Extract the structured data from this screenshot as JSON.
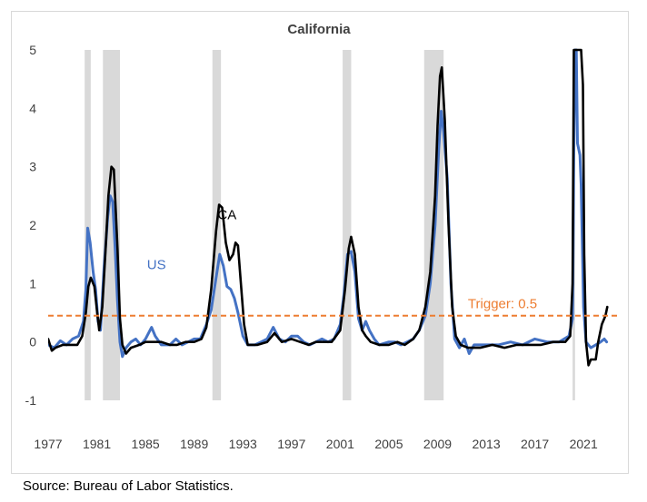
{
  "source": "Source: Bureau of Labor Statistics.",
  "chart_data": {
    "type": "line",
    "title": "California",
    "xlabel": "",
    "ylabel": "",
    "xlim": [
      1977,
      2023.3
    ],
    "ylim": [
      -1,
      5
    ],
    "x_ticks": [
      "1977",
      "1981",
      "1985",
      "1989",
      "1993",
      "1997",
      "2001",
      "2005",
      "2009",
      "2013",
      "2017",
      "2021"
    ],
    "y_ticks": [
      "5",
      "4",
      "3",
      "2",
      "1",
      "0",
      "-1"
    ],
    "grid": false,
    "recessions": [
      [
        1980.0,
        1980.5
      ],
      [
        1981.5,
        1982.9
      ],
      [
        1990.5,
        1991.2
      ],
      [
        2001.2,
        2001.9
      ],
      [
        2007.9,
        2009.5
      ],
      [
        2020.1,
        2020.3
      ]
    ],
    "trigger": {
      "value": 0.45,
      "label": "Trigger: 0.5",
      "color": "#ed7d31"
    },
    "colors": {
      "US": "#4472c4",
      "CA": "#000000",
      "recession": "#d9d9d9"
    },
    "series": [
      {
        "name": "US",
        "label": "US",
        "label_at": [
          1985.9,
          1.25
        ],
        "points": [
          [
            1977.0,
            -0.05
          ],
          [
            1977.5,
            -0.1
          ],
          [
            1978.0,
            0.02
          ],
          [
            1978.5,
            -0.05
          ],
          [
            1979.0,
            0.05
          ],
          [
            1979.5,
            0.1
          ],
          [
            1979.9,
            0.35
          ],
          [
            1980.1,
            0.9
          ],
          [
            1980.25,
            1.95
          ],
          [
            1980.45,
            1.7
          ],
          [
            1980.7,
            1.2
          ],
          [
            1980.9,
            0.9
          ],
          [
            1981.1,
            0.35
          ],
          [
            1981.3,
            0.2
          ],
          [
            1981.6,
            1.3
          ],
          [
            1981.9,
            2.15
          ],
          [
            1982.1,
            2.5
          ],
          [
            1982.3,
            2.4
          ],
          [
            1982.5,
            1.6
          ],
          [
            1982.7,
            0.7
          ],
          [
            1982.9,
            0.0
          ],
          [
            1983.1,
            -0.25
          ],
          [
            1983.4,
            -0.1
          ],
          [
            1983.8,
            0.0
          ],
          [
            1984.2,
            0.05
          ],
          [
            1984.6,
            -0.05
          ],
          [
            1985.0,
            0.05
          ],
          [
            1985.5,
            0.25
          ],
          [
            1985.8,
            0.1
          ],
          [
            1986.3,
            -0.05
          ],
          [
            1987.0,
            -0.05
          ],
          [
            1987.5,
            0.05
          ],
          [
            1988.0,
            -0.05
          ],
          [
            1988.5,
            0.0
          ],
          [
            1989.0,
            0.05
          ],
          [
            1989.5,
            0.05
          ],
          [
            1990.0,
            0.3
          ],
          [
            1990.4,
            0.55
          ],
          [
            1990.8,
            1.1
          ],
          [
            1991.1,
            1.5
          ],
          [
            1991.4,
            1.3
          ],
          [
            1991.7,
            0.95
          ],
          [
            1992.0,
            0.9
          ],
          [
            1992.3,
            0.75
          ],
          [
            1992.6,
            0.5
          ],
          [
            1993.0,
            0.1
          ],
          [
            1993.4,
            -0.05
          ],
          [
            1994.0,
            -0.05
          ],
          [
            1994.5,
            0.0
          ],
          [
            1995.0,
            0.05
          ],
          [
            1995.5,
            0.25
          ],
          [
            1996.0,
            0.05
          ],
          [
            1996.5,
            0.0
          ],
          [
            1997.0,
            0.1
          ],
          [
            1997.5,
            0.1
          ],
          [
            1998.0,
            0.0
          ],
          [
            1998.5,
            -0.05
          ],
          [
            1999.0,
            0.0
          ],
          [
            1999.5,
            0.05
          ],
          [
            2000.0,
            0.0
          ],
          [
            2000.5,
            0.05
          ],
          [
            2001.0,
            0.3
          ],
          [
            2001.3,
            0.8
          ],
          [
            2001.6,
            1.5
          ],
          [
            2001.9,
            1.55
          ],
          [
            2002.2,
            1.2
          ],
          [
            2002.5,
            0.4
          ],
          [
            2002.8,
            0.2
          ],
          [
            2003.1,
            0.35
          ],
          [
            2003.4,
            0.2
          ],
          [
            2003.8,
            0.05
          ],
          [
            2004.2,
            -0.05
          ],
          [
            2005.0,
            0.0
          ],
          [
            2005.5,
            0.0
          ],
          [
            2006.0,
            -0.05
          ],
          [
            2006.5,
            0.0
          ],
          [
            2007.0,
            0.05
          ],
          [
            2007.5,
            0.2
          ],
          [
            2008.0,
            0.45
          ],
          [
            2008.4,
            1.0
          ],
          [
            2008.8,
            2.0
          ],
          [
            2009.1,
            3.3
          ],
          [
            2009.3,
            3.95
          ],
          [
            2009.5,
            3.6
          ],
          [
            2009.8,
            2.8
          ],
          [
            2010.1,
            1.0
          ],
          [
            2010.4,
            0.05
          ],
          [
            2010.8,
            -0.1
          ],
          [
            2011.2,
            0.05
          ],
          [
            2011.6,
            -0.2
          ],
          [
            2012.0,
            -0.05
          ],
          [
            2013.0,
            -0.05
          ],
          [
            2014.0,
            -0.05
          ],
          [
            2015.0,
            0.0
          ],
          [
            2016.0,
            -0.05
          ],
          [
            2017.0,
            0.05
          ],
          [
            2018.0,
            0.0
          ],
          [
            2019.0,
            0.0
          ],
          [
            2019.8,
            0.1
          ],
          [
            2020.1,
            0.4
          ],
          [
            2020.2,
            3.3
          ],
          [
            2020.3,
            5.0
          ],
          [
            2020.4,
            5.0
          ],
          [
            2020.5,
            3.4
          ],
          [
            2020.7,
            3.2
          ],
          [
            2020.8,
            2.7
          ],
          [
            2021.0,
            0.6
          ],
          [
            2021.2,
            0.0
          ],
          [
            2021.6,
            -0.1
          ],
          [
            2022.0,
            -0.05
          ],
          [
            2022.4,
            0.0
          ],
          [
            2022.7,
            0.05
          ],
          [
            2022.9,
            0.0
          ]
        ]
      },
      {
        "name": "CA",
        "label": "CA",
        "label_at": [
          1991.7,
          2.1
        ],
        "points": [
          [
            1977.0,
            0.05
          ],
          [
            1977.3,
            -0.15
          ],
          [
            1977.6,
            -0.1
          ],
          [
            1978.2,
            -0.05
          ],
          [
            1978.8,
            -0.05
          ],
          [
            1979.4,
            -0.05
          ],
          [
            1979.8,
            0.1
          ],
          [
            1980.1,
            0.5
          ],
          [
            1980.3,
            0.95
          ],
          [
            1980.5,
            1.1
          ],
          [
            1980.8,
            0.95
          ],
          [
            1981.0,
            0.55
          ],
          [
            1981.2,
            0.2
          ],
          [
            1981.45,
            0.6
          ],
          [
            1981.7,
            1.5
          ],
          [
            1981.95,
            2.5
          ],
          [
            1982.2,
            3.0
          ],
          [
            1982.4,
            2.95
          ],
          [
            1982.7,
            1.6
          ],
          [
            1982.9,
            0.4
          ],
          [
            1983.1,
            -0.05
          ],
          [
            1983.4,
            -0.2
          ],
          [
            1983.8,
            -0.1
          ],
          [
            1984.5,
            -0.05
          ],
          [
            1985.0,
            0.0
          ],
          [
            1985.6,
            0.0
          ],
          [
            1986.3,
            0.0
          ],
          [
            1987.0,
            -0.05
          ],
          [
            1987.6,
            -0.05
          ],
          [
            1988.3,
            0.0
          ],
          [
            1989.0,
            0.0
          ],
          [
            1989.6,
            0.05
          ],
          [
            1990.0,
            0.25
          ],
          [
            1990.4,
            0.9
          ],
          [
            1990.8,
            1.9
          ],
          [
            1991.05,
            2.35
          ],
          [
            1991.3,
            2.3
          ],
          [
            1991.6,
            1.7
          ],
          [
            1991.9,
            1.4
          ],
          [
            1992.2,
            1.5
          ],
          [
            1992.4,
            1.7
          ],
          [
            1992.6,
            1.65
          ],
          [
            1992.8,
            1.1
          ],
          [
            1993.1,
            0.3
          ],
          [
            1993.4,
            -0.05
          ],
          [
            1994.2,
            -0.05
          ],
          [
            1995.0,
            0.0
          ],
          [
            1995.6,
            0.15
          ],
          [
            1996.2,
            0.0
          ],
          [
            1997.0,
            0.05
          ],
          [
            1997.7,
            0.0
          ],
          [
            1998.4,
            -0.05
          ],
          [
            1999.0,
            0.0
          ],
          [
            1999.6,
            0.0
          ],
          [
            2000.3,
            0.0
          ],
          [
            2001.0,
            0.2
          ],
          [
            2001.4,
            0.9
          ],
          [
            2001.7,
            1.6
          ],
          [
            2001.9,
            1.8
          ],
          [
            2002.2,
            1.5
          ],
          [
            2002.5,
            0.6
          ],
          [
            2002.8,
            0.2
          ],
          [
            2003.1,
            0.1
          ],
          [
            2003.5,
            0.0
          ],
          [
            2004.2,
            -0.05
          ],
          [
            2005.0,
            -0.05
          ],
          [
            2005.7,
            0.0
          ],
          [
            2006.3,
            -0.05
          ],
          [
            2007.0,
            0.05
          ],
          [
            2007.5,
            0.2
          ],
          [
            2008.0,
            0.6
          ],
          [
            2008.4,
            1.2
          ],
          [
            2008.8,
            2.5
          ],
          [
            2009.0,
            3.7
          ],
          [
            2009.2,
            4.55
          ],
          [
            2009.35,
            4.7
          ],
          [
            2009.6,
            3.8
          ],
          [
            2009.9,
            2.0
          ],
          [
            2010.2,
            0.6
          ],
          [
            2010.5,
            0.1
          ],
          [
            2010.9,
            -0.05
          ],
          [
            2011.5,
            -0.1
          ],
          [
            2012.5,
            -0.1
          ],
          [
            2013.5,
            -0.05
          ],
          [
            2014.5,
            -0.1
          ],
          [
            2015.5,
            -0.05
          ],
          [
            2016.5,
            -0.05
          ],
          [
            2017.5,
            -0.05
          ],
          [
            2018.5,
            0.0
          ],
          [
            2019.5,
            0.0
          ],
          [
            2019.9,
            0.1
          ],
          [
            2020.1,
            1.0
          ],
          [
            2020.2,
            5.0
          ],
          [
            2020.8,
            5.0
          ],
          [
            2020.95,
            4.4
          ],
          [
            2021.05,
            1.5
          ],
          [
            2021.2,
            0.0
          ],
          [
            2021.4,
            -0.4
          ],
          [
            2021.6,
            -0.3
          ],
          [
            2022.0,
            -0.3
          ],
          [
            2022.2,
            0.0
          ],
          [
            2022.5,
            0.3
          ],
          [
            2022.8,
            0.45
          ],
          [
            2022.95,
            0.6
          ]
        ]
      }
    ]
  }
}
